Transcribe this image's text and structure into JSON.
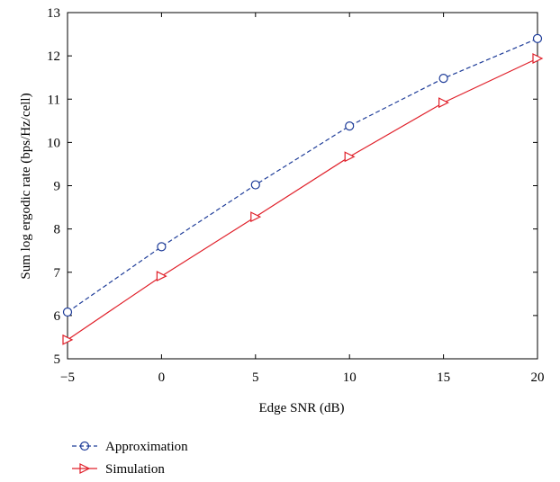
{
  "chart_data": {
    "type": "line",
    "title": "",
    "xlabel": "Edge SNR (dB)",
    "ylabel": "Sum log ergodic rate (bps/Hz/cell)",
    "x": [
      -5,
      0,
      5,
      10,
      15,
      20
    ],
    "xlim": [
      -5,
      20
    ],
    "ylim": [
      5,
      13
    ],
    "xticks": [
      -5,
      0,
      5,
      10,
      15,
      20
    ],
    "xtick_labels": [
      "−5",
      "0",
      "5",
      "10",
      "15",
      "20"
    ],
    "yticks": [
      5,
      6,
      7,
      8,
      9,
      10,
      11,
      12,
      13
    ],
    "ytick_labels": [
      "5",
      "6",
      "7",
      "8",
      "9",
      "10",
      "11",
      "12",
      "13"
    ],
    "grid": false,
    "legend_position": "bottom-left, below plot",
    "series": [
      {
        "name": "Approximation",
        "values": [
          6.08,
          7.59,
          9.02,
          10.38,
          11.48,
          12.4
        ],
        "color": "#1f3d99",
        "line_style": "dashed",
        "marker": "circle"
      },
      {
        "name": "Simulation",
        "values": [
          5.44,
          6.91,
          8.28,
          9.67,
          10.92,
          11.94
        ],
        "color": "#e0202a",
        "line_style": "solid",
        "marker": "triangle-right"
      }
    ]
  }
}
